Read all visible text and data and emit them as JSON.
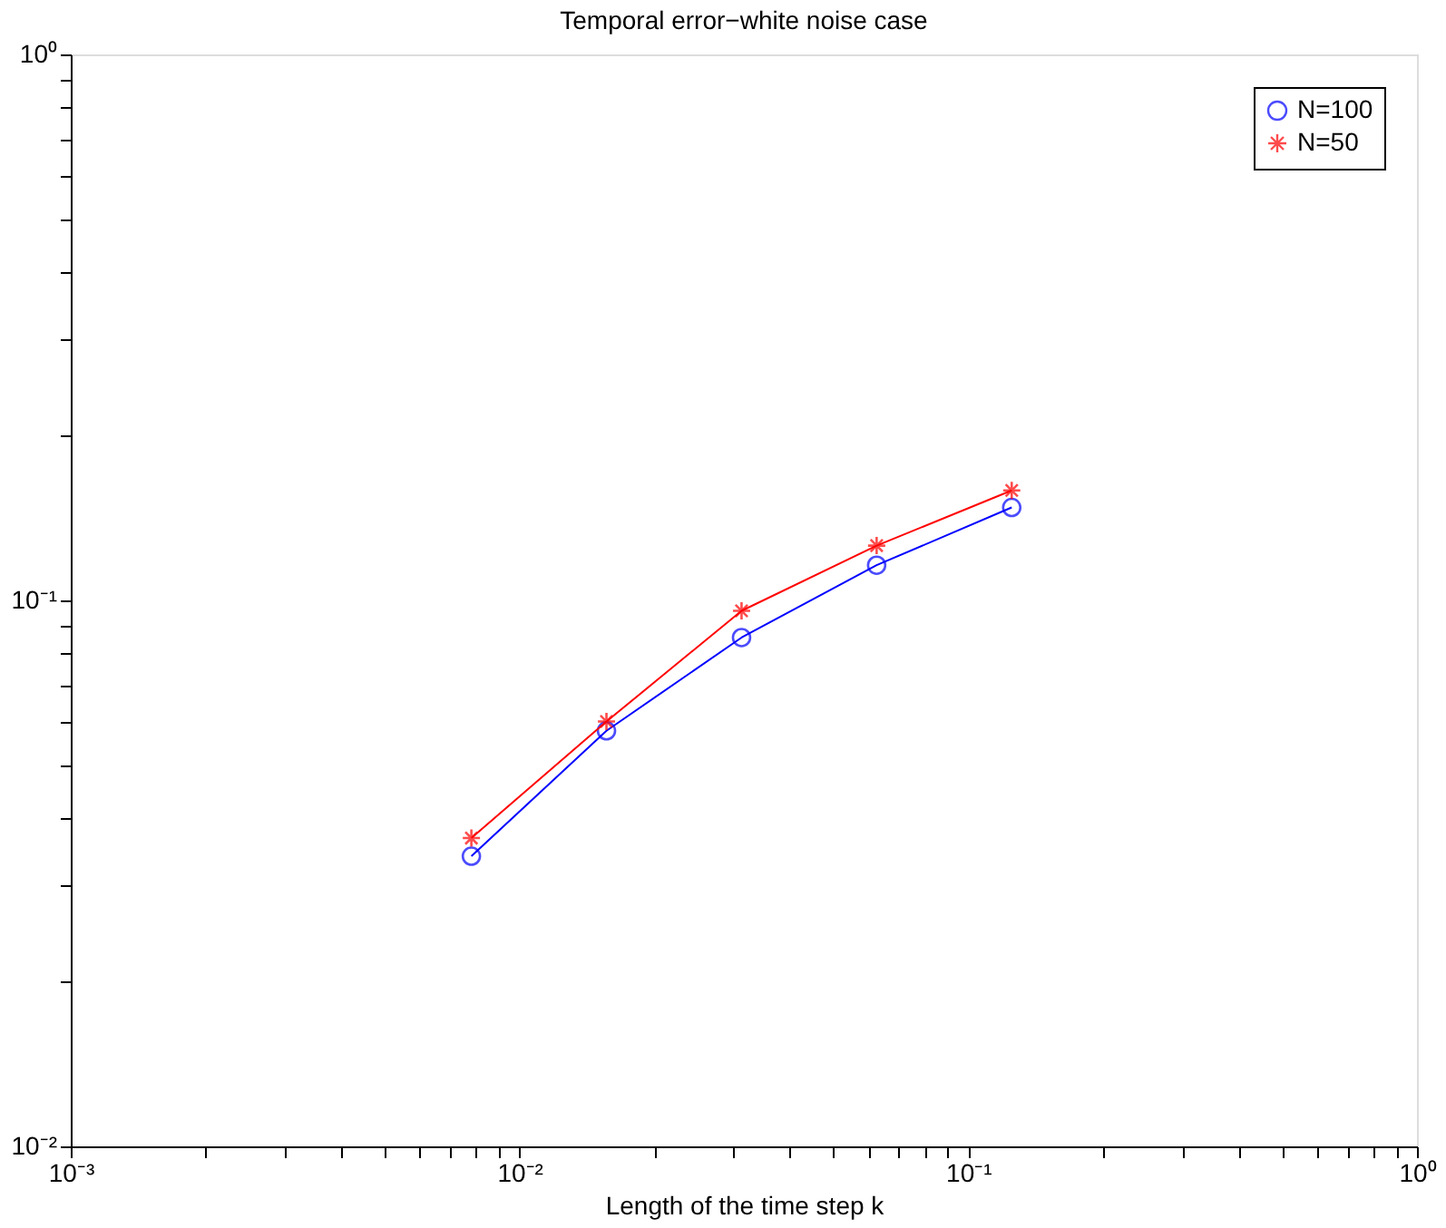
{
  "chart_data": {
    "type": "line",
    "title": "Temporal error−white noise case",
    "xlabel": "Length of the time step k",
    "x": [
      0.0078125,
      0.015625,
      0.03125,
      0.0625,
      0.125
    ],
    "series": [
      {
        "name": "N=100",
        "color": "#0000ff",
        "marker": "circle",
        "values": [
          0.034,
          0.0577,
          0.0855,
          0.116,
          0.148
        ]
      },
      {
        "name": "N=50",
        "color": "#ff0000",
        "marker": "cross",
        "values": [
          0.0367,
          0.06,
          0.0957,
          0.126,
          0.159
        ]
      }
    ],
    "log": "xy",
    "xlim": [
      0.001,
      1
    ],
    "ylim": [
      0.01,
      1
    ],
    "xticks": [
      {
        "value": 0.001,
        "label": "10⁻³"
      },
      {
        "value": 0.002,
        "label": null
      },
      {
        "value": 0.003,
        "label": null
      },
      {
        "value": 0.004,
        "label": null
      },
      {
        "value": 0.005,
        "label": null
      },
      {
        "value": 0.006,
        "label": null
      },
      {
        "value": 0.007,
        "label": null
      },
      {
        "value": 0.008,
        "label": null
      },
      {
        "value": 0.009,
        "label": null
      },
      {
        "value": 0.01,
        "label": "10⁻²"
      },
      {
        "value": 0.02,
        "label": null
      },
      {
        "value": 0.03,
        "label": null
      },
      {
        "value": 0.04,
        "label": null
      },
      {
        "value": 0.05,
        "label": null
      },
      {
        "value": 0.06,
        "label": null
      },
      {
        "value": 0.07,
        "label": null
      },
      {
        "value": 0.08,
        "label": null
      },
      {
        "value": 0.09,
        "label": null
      },
      {
        "value": 0.1,
        "label": "10⁻¹"
      },
      {
        "value": 0.2,
        "label": null
      },
      {
        "value": 0.3,
        "label": null
      },
      {
        "value": 0.4,
        "label": null
      },
      {
        "value": 0.5,
        "label": null
      },
      {
        "value": 0.6,
        "label": null
      },
      {
        "value": 0.7,
        "label": null
      },
      {
        "value": 0.8,
        "label": null
      },
      {
        "value": 0.9,
        "label": null
      },
      {
        "value": 1,
        "label": "10⁰"
      }
    ],
    "yticks": [
      {
        "value": 0.01,
        "label": "10⁻²"
      },
      {
        "value": 0.02,
        "label": null
      },
      {
        "value": 0.03,
        "label": null
      },
      {
        "value": 0.04,
        "label": null
      },
      {
        "value": 0.05,
        "label": null
      },
      {
        "value": 0.06,
        "label": null
      },
      {
        "value": 0.07,
        "label": null
      },
      {
        "value": 0.08,
        "label": null
      },
      {
        "value": 0.09,
        "label": null
      },
      {
        "value": 0.1,
        "label": "10⁻¹"
      },
      {
        "value": 0.2,
        "label": null
      },
      {
        "value": 0.3,
        "label": null
      },
      {
        "value": 0.4,
        "label": null
      },
      {
        "value": 0.5,
        "label": null
      },
      {
        "value": 0.6,
        "label": null
      },
      {
        "value": 0.7,
        "label": null
      },
      {
        "value": 0.8,
        "label": null
      },
      {
        "value": 0.9,
        "label": null
      },
      {
        "value": 1,
        "label": "10⁰"
      }
    ],
    "grid": false,
    "legend": "top right",
    "line_style": "solid"
  }
}
